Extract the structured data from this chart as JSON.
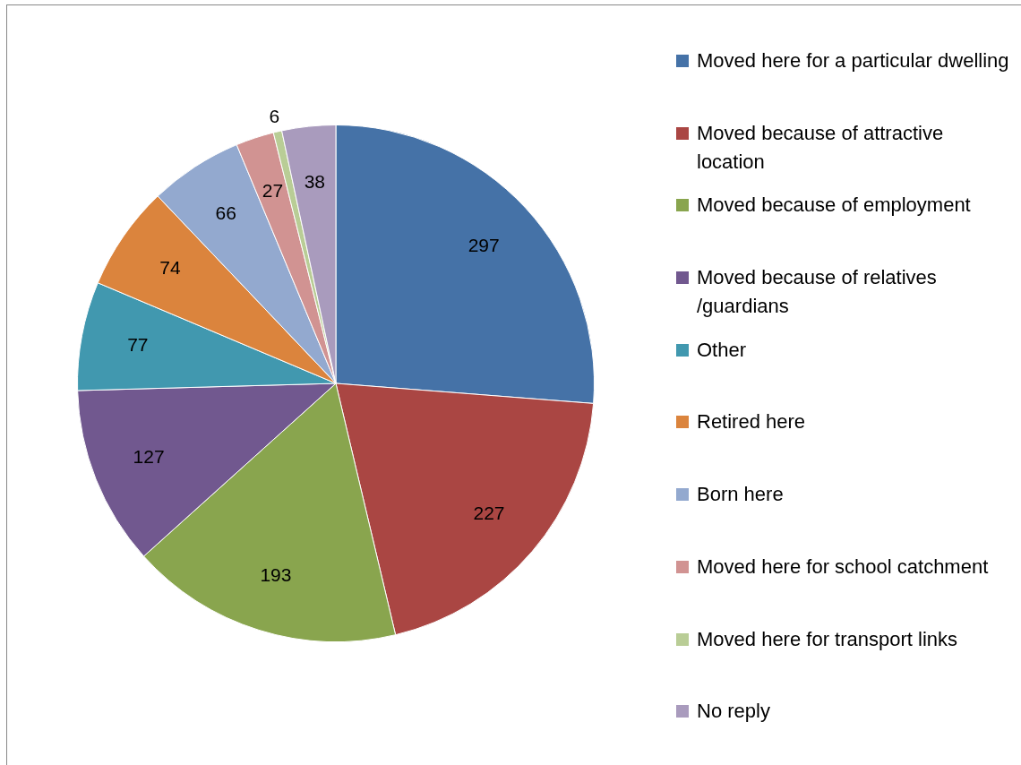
{
  "chart_data": {
    "type": "pie",
    "categories": [
      "Moved here for a particular dwelling",
      "Moved because of attractive location",
      "Moved because of employment",
      "Moved because of relatives /guardians",
      "Other",
      "Retired here",
      "Born here",
      "Moved here for school catchment",
      "Moved here for transport links",
      "No reply"
    ],
    "values": [
      297,
      227,
      193,
      127,
      77,
      74,
      66,
      27,
      6,
      38
    ],
    "colors": [
      "#4572a7",
      "#aa4643",
      "#89a54e",
      "#71588f",
      "#4198af",
      "#db843d",
      "#93a9cf",
      "#d19392",
      "#b9cd96",
      "#a99bbd"
    ],
    "data_labels": true,
    "legend": "right"
  }
}
